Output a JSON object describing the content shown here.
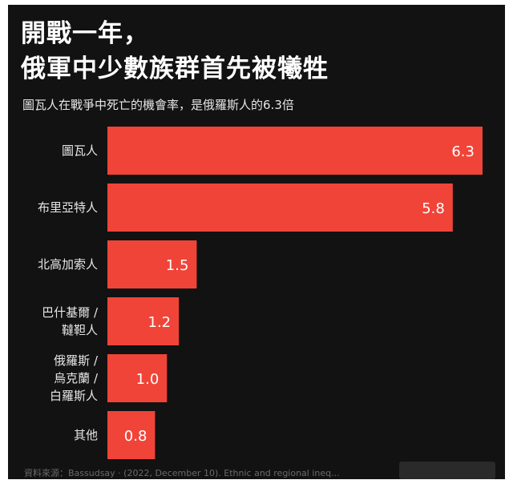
{
  "headline": {
    "line1": "開戰一年，",
    "line2": "俄軍中少數族群首先被犧牲"
  },
  "subtitle": "圖瓦人在戰爭中死亡的機會率，是俄羅斯人的6.3倍",
  "source_text": "資料來源：Bassudsay · (2022, December 10). Ethnic and regional ineq...",
  "colors": {
    "background": "#121212",
    "bar": "#f04438",
    "label": "#e6e6e6",
    "value_label": "#ffffff"
  },
  "chart_data": {
    "type": "bar",
    "orientation": "horizontal",
    "title": "",
    "xlabel": "",
    "ylabel": "",
    "xlim": [
      0,
      6.3
    ],
    "grid": false,
    "legend": "none",
    "categories": [
      [
        "圖瓦人"
      ],
      [
        "布里亞特人"
      ],
      [
        "北高加索人"
      ],
      [
        "巴什基爾 /",
        "韃靼人"
      ],
      [
        "俄羅斯 /",
        "烏克蘭 /",
        "白羅斯人"
      ],
      [
        "其他"
      ]
    ],
    "values": [
      6.3,
      5.8,
      1.5,
      1.2,
      1.0,
      0.8
    ],
    "value_labels": [
      "6.3",
      "5.8",
      "1.5",
      "1.2",
      "1.0",
      "0.8"
    ]
  }
}
